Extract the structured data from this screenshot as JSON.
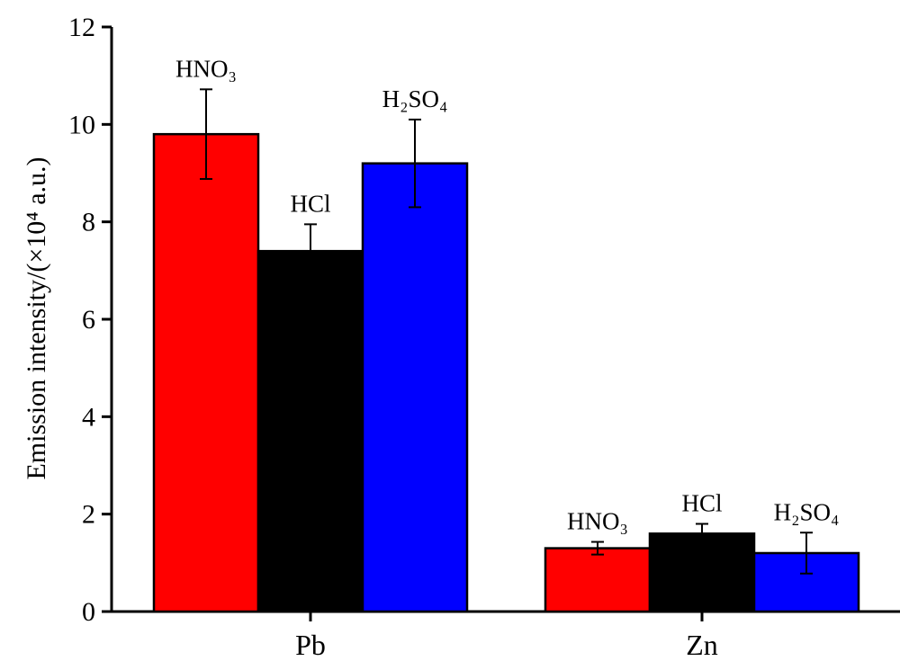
{
  "chart_data": {
    "type": "bar",
    "title": "",
    "xlabel": "",
    "ylabel": "Emission intensity/(×10⁴ a.u.)",
    "ylim": [
      0,
      12
    ],
    "yticks": [
      0,
      2,
      4,
      6,
      8,
      10,
      12
    ],
    "grid": false,
    "legend": "none",
    "categories": [
      "Pb",
      "Zn"
    ],
    "series": [
      {
        "name": "HNO₃",
        "color": "#ff0000",
        "values": [
          9.8,
          1.3
        ],
        "errors": [
          0.92,
          0.13
        ]
      },
      {
        "name": "HCl",
        "color": "#000000",
        "values": [
          7.4,
          1.6
        ],
        "errors": [
          0.55,
          0.2
        ]
      },
      {
        "name": "H₂SO₄",
        "color": "#0000ff",
        "values": [
          9.2,
          1.2
        ],
        "errors": [
          0.9,
          0.42
        ]
      }
    ]
  }
}
